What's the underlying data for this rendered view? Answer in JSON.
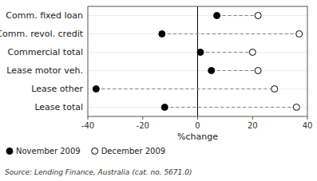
{
  "chart_data": {
    "type": "dumbbell",
    "orientation": "horizontal",
    "categories": [
      "Comm. fixed loan",
      "Comm. revol. credit",
      "Commercial total",
      "Lease motor veh.",
      "Lease other",
      "Lease total"
    ],
    "series": [
      {
        "name": "November 2009",
        "color": "black",
        "marker": "circle",
        "values": [
          7,
          -13,
          1,
          5,
          -37,
          -12
        ]
      },
      {
        "name": "December 2009",
        "color": "white",
        "marker": "circle",
        "values": [
          22,
          37,
          20,
          22,
          28,
          36
        ]
      }
    ],
    "xlabel": "%change",
    "xlim": [
      -40,
      40
    ],
    "xticks": [
      -40,
      -20,
      0,
      20,
      40
    ],
    "legend": "lower left",
    "source": "Source: Lending Finance, Australia (cat. no. 5671.0)"
  }
}
